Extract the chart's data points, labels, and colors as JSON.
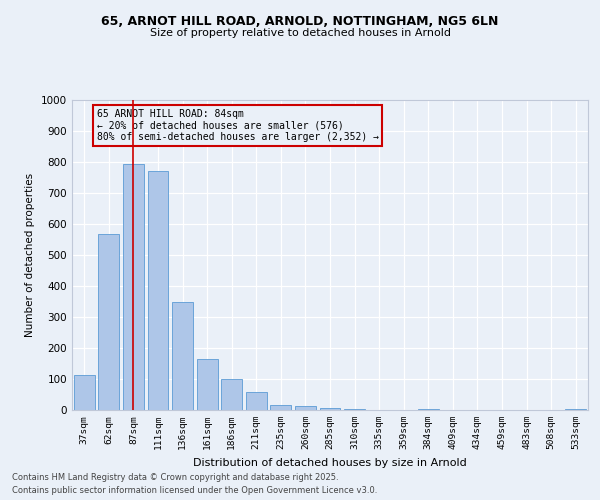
{
  "title_line1": "65, ARNOT HILL ROAD, ARNOLD, NOTTINGHAM, NG5 6LN",
  "title_line2": "Size of property relative to detached houses in Arnold",
  "xlabel": "Distribution of detached houses by size in Arnold",
  "ylabel": "Number of detached properties",
  "categories": [
    "37sqm",
    "62sqm",
    "87sqm",
    "111sqm",
    "136sqm",
    "161sqm",
    "186sqm",
    "211sqm",
    "235sqm",
    "260sqm",
    "285sqm",
    "310sqm",
    "335sqm",
    "359sqm",
    "384sqm",
    "409sqm",
    "434sqm",
    "459sqm",
    "483sqm",
    "508sqm",
    "533sqm"
  ],
  "values": [
    112,
    567,
    795,
    772,
    350,
    165,
    100,
    57,
    17,
    12,
    8,
    2,
    0,
    0,
    3,
    0,
    0,
    0,
    0,
    0,
    2
  ],
  "bar_color": "#aec6e8",
  "bar_edge_color": "#5b9bd5",
  "background_color": "#eaf0f8",
  "grid_color": "#ffffff",
  "vline_x_index": 2,
  "vline_color": "#cc0000",
  "annotation_title": "65 ARNOT HILL ROAD: 84sqm",
  "annotation_line1": "← 20% of detached houses are smaller (576)",
  "annotation_line2": "80% of semi-detached houses are larger (2,352) →",
  "annotation_box_color": "#cc0000",
  "ylim": [
    0,
    1000
  ],
  "yticks": [
    0,
    100,
    200,
    300,
    400,
    500,
    600,
    700,
    800,
    900,
    1000
  ],
  "footnote_line1": "Contains HM Land Registry data © Crown copyright and database right 2025.",
  "footnote_line2": "Contains public sector information licensed under the Open Government Licence v3.0."
}
